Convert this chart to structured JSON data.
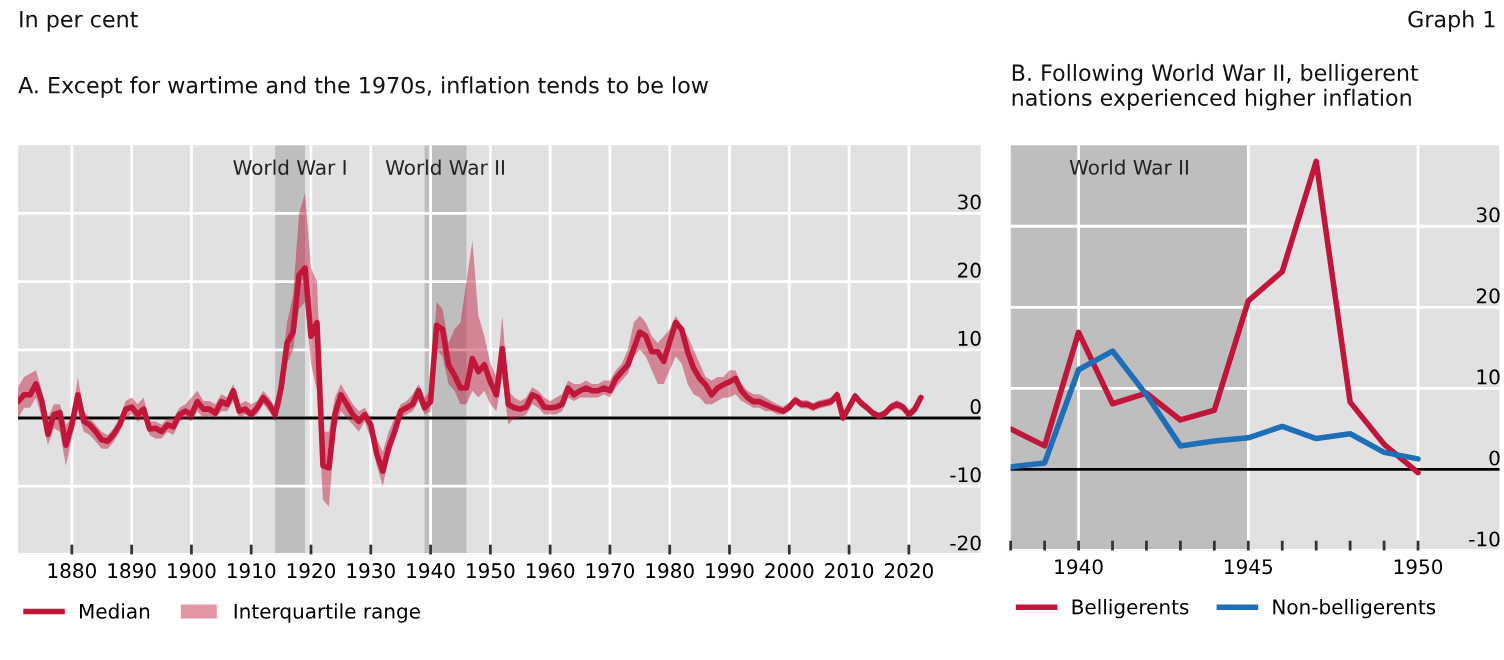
{
  "chart_data": [
    {
      "type": "line",
      "title": "A. Except for wartime and the 1970s, inflation tends to be low",
      "annotations": [
        "In per cent",
        "Graph 1",
        "Interquartile range"
      ],
      "x": [
        1871,
        1872,
        1873,
        1874,
        1875,
        1876,
        1877,
        1878,
        1879,
        1880,
        1881,
        1882,
        1883,
        1884,
        1885,
        1886,
        1887,
        1888,
        1889,
        1890,
        1891,
        1892,
        1893,
        1894,
        1895,
        1896,
        1897,
        1898,
        1899,
        1900,
        1901,
        1902,
        1903,
        1904,
        1905,
        1906,
        1907,
        1908,
        1909,
        1910,
        1911,
        1912,
        1913,
        1914,
        1915,
        1916,
        1917,
        1918,
        1919,
        1920,
        1921,
        1922,
        1923,
        1924,
        1925,
        1926,
        1927,
        1928,
        1929,
        1930,
        1931,
        1932,
        1933,
        1934,
        1935,
        1936,
        1937,
        1938,
        1939,
        1940,
        1941,
        1942,
        1943,
        1944,
        1945,
        1946,
        1947,
        1948,
        1949,
        1950,
        1951,
        1952,
        1953,
        1954,
        1955,
        1956,
        1957,
        1958,
        1959,
        1960,
        1961,
        1962,
        1963,
        1964,
        1965,
        1966,
        1967,
        1968,
        1969,
        1970,
        1971,
        1972,
        1973,
        1974,
        1975,
        1976,
        1977,
        1978,
        1979,
        1980,
        1981,
        1982,
        1983,
        1984,
        1985,
        1986,
        1987,
        1988,
        1989,
        1990,
        1991,
        1992,
        1993,
        1994,
        1995,
        1996,
        1997,
        1998,
        1999,
        2000,
        2001,
        2002,
        2003,
        2004,
        2005,
        2006,
        2007,
        2008,
        2009,
        2010,
        2011,
        2012,
        2013,
        2014,
        2015,
        2016,
        2017,
        2018,
        2019,
        2020,
        2021,
        2022
      ],
      "series": [
        {
          "name": "Median",
          "color": "#c0163a",
          "upper": [
            4.5,
            6,
            6.5,
            7,
            4,
            0,
            2,
            2,
            -1,
            0,
            6,
            1,
            0,
            -1,
            -2,
            -2.5,
            -1.5,
            0,
            2.5,
            3,
            2,
            3,
            -0.5,
            -0.5,
            -1,
            0,
            0,
            1.5,
            2,
            3,
            4,
            2.5,
            2.5,
            2,
            3.5,
            3,
            5,
            2,
            2.5,
            2,
            2.5,
            4,
            3,
            1.5,
            7,
            14,
            18,
            30,
            33,
            22,
            20,
            -2,
            -2,
            3,
            5,
            3.5,
            2,
            1,
            1.5,
            0,
            -3,
            -5,
            -2,
            0,
            2,
            2.5,
            3.5,
            5,
            3,
            4,
            17,
            16,
            11,
            13,
            14,
            20,
            26,
            15,
            12,
            8,
            6,
            15,
            4,
            3,
            2.5,
            3,
            4.5,
            4,
            3,
            2.5,
            3,
            3.5,
            5.5,
            5,
            5,
            5.5,
            5,
            5,
            5.5,
            5.5,
            7,
            8,
            10,
            14,
            15,
            14,
            12,
            11,
            12,
            13,
            15,
            13.5,
            12,
            10,
            8,
            6,
            5.5,
            6,
            6,
            7,
            7,
            5,
            4,
            3.5,
            3.5,
            3,
            2.5,
            2,
            1.7,
            2.3,
            3.2,
            2.6,
            2.6,
            2.2,
            2.6,
            2.8,
            3,
            4,
            0.6,
            2.2,
            3.8,
            2.8,
            2,
            1.2,
            0.8,
            1.2,
            2.2,
            2.6,
            2.2,
            1,
            2,
            3.6
          ],
          "lower": [
            0,
            1.5,
            1.5,
            3,
            0,
            -4,
            -1.5,
            -2,
            -7,
            -3,
            1,
            -2,
            -2.5,
            -3.5,
            -4.5,
            -4.5,
            -3.5,
            -2,
            0,
            0.5,
            -0.5,
            0,
            -2.5,
            -3,
            -3,
            -2,
            -2.5,
            -0.5,
            0,
            -0.5,
            1,
            0,
            0.3,
            0,
            1,
            1,
            2.5,
            0,
            0.5,
            0,
            0.5,
            2,
            1,
            -0.5,
            2,
            8,
            10,
            16,
            17,
            8,
            4,
            -12,
            -13,
            -2,
            1,
            0,
            -1,
            -2,
            -0.5,
            -3,
            -7,
            -10,
            -6,
            -3,
            0,
            0.5,
            1,
            2.5,
            0.5,
            1,
            10,
            9,
            5,
            4,
            2,
            2,
            4,
            3,
            4,
            2,
            1,
            6,
            -1,
            0,
            0,
            0.5,
            2,
            1.5,
            0.5,
            0.5,
            0.5,
            1,
            3,
            2.5,
            3,
            3,
            3,
            3,
            3.5,
            3,
            4.5,
            5.5,
            6.5,
            9,
            10,
            9,
            7,
            5,
            5,
            7,
            9,
            8,
            5,
            3.5,
            3,
            2,
            2,
            2.5,
            3,
            3,
            3.5,
            2.5,
            2,
            1.5,
            1.5,
            1,
            1,
            0.5,
            0.5,
            1,
            2,
            1.4,
            1.4,
            1,
            1.4,
            1.6,
            1.8,
            2.8,
            -0.6,
            1,
            2.6,
            1.6,
            1,
            0.2,
            -0.2,
            0.2,
            1,
            1.4,
            1,
            0,
            0.6,
            2.4
          ],
          "values": [
            2.4,
            3.4,
            3.4,
            5,
            2.4,
            -2.4,
            0.5,
            0.8,
            -4,
            -1,
            3.4,
            -0.5,
            -1,
            -2,
            -3.2,
            -3.4,
            -2.4,
            -1,
            1.3,
            1.6,
            0.5,
            1.3,
            -1.6,
            -1.5,
            -2,
            -1,
            -1.3,
            0.5,
            1,
            0.5,
            2.4,
            1.3,
            1.3,
            0.7,
            2.4,
            2,
            4,
            1,
            1.3,
            0.5,
            1.5,
            3,
            2,
            0.5,
            4.4,
            11,
            12.6,
            21,
            22,
            12,
            14,
            -7,
            -7.3,
            0.5,
            3.4,
            2,
            0.5,
            -0.5,
            0.5,
            -1,
            -5.3,
            -7.8,
            -4.4,
            -2,
            1,
            1.5,
            2,
            4,
            1.5,
            2.4,
            13.6,
            13,
            7.8,
            6.3,
            4.4,
            4.4,
            8.7,
            6.8,
            7.8,
            5.3,
            3.4,
            10.2,
            2,
            1.5,
            1.3,
            1.6,
            3.4,
            3,
            1.6,
            1.5,
            1.6,
            2,
            4.4,
            3.4,
            4,
            4.4,
            4,
            4,
            4.4,
            4,
            5.8,
            6.8,
            7.8,
            10.2,
            12.6,
            12,
            9.7,
            9.7,
            8.3,
            11.2,
            14,
            13,
            9.7,
            7.3,
            5.8,
            4.9,
            3.4,
            4.4,
            4.9,
            5.3,
            5.8,
            4,
            3,
            2.4,
            2.4,
            2,
            1.6,
            1.3,
            1,
            1.6,
            2.6,
            2,
            2,
            1.6,
            2,
            2.2,
            2.4,
            3.4,
            0,
            1.6,
            3.2,
            2.2,
            1.5,
            0.7,
            0.3,
            0.7,
            1.6,
            2,
            1.6,
            0.5,
            1.3,
            3
          ]
        }
      ],
      "xlim": [
        1871,
        2032
      ],
      "xticks": [
        1880,
        1890,
        1900,
        1910,
        1920,
        1930,
        1940,
        1950,
        1960,
        1970,
        1980,
        1990,
        2000,
        2010,
        2020
      ],
      "ylim": [
        -20,
        40
      ],
      "yticks": [
        -20,
        -10,
        0,
        10,
        20,
        30
      ],
      "grid": true,
      "legend": "bottom",
      "ref_lines": [
        {
          "axis": "y",
          "value": 0,
          "color": "#000000"
        }
      ],
      "bands": [
        {
          "axis": "x",
          "from": 1914,
          "to": 1919,
          "label": "World War I",
          "color": "#bebebe"
        },
        {
          "axis": "x",
          "from": 1939,
          "to": 1946,
          "label": "World War II",
          "color": "#bebebe"
        }
      ]
    },
    {
      "type": "line",
      "title": "B. Following World War II, belligerent nations experienced higher inflation",
      "x": [
        1938,
        1939,
        1940,
        1941,
        1942,
        1943,
        1944,
        1945,
        1946,
        1947,
        1948,
        1949,
        1950
      ],
      "series": [
        {
          "name": "Belligerents",
          "color": "#c0163a",
          "values": [
            5,
            2.9,
            16.9,
            8.1,
            9.4,
            6.1,
            7.3,
            20.8,
            24.4,
            38,
            8.3,
            3.1,
            -0.4
          ]
        },
        {
          "name": "Non-belligerents",
          "color": "#1f6fb8",
          "values": [
            0.3,
            0.8,
            12.3,
            14.6,
            9.2,
            2.9,
            3.5,
            3.9,
            5.3,
            3.8,
            4.4,
            2.1,
            1.3
          ]
        }
      ],
      "xlim": [
        1938,
        1952.4
      ],
      "xticks": [
        {
          "value": 1938,
          "label": null
        },
        {
          "value": 1939,
          "label": null
        },
        1940,
        {
          "value": 1941,
          "label": null
        },
        {
          "value": 1942,
          "label": null
        },
        {
          "value": 1943,
          "label": null
        },
        {
          "value": 1944,
          "label": null
        },
        1945,
        {
          "value": 1946,
          "label": null
        },
        {
          "value": 1947,
          "label": null
        },
        {
          "value": 1948,
          "label": null
        },
        {
          "value": 1949,
          "label": null
        },
        1950
      ],
      "ylim": [
        -10,
        40
      ],
      "yticks": [
        -10,
        0,
        10,
        20,
        30
      ],
      "grid": true,
      "legend": "bottom",
      "ref_lines": [
        {
          "axis": "y",
          "value": 0,
          "color": "#000000"
        }
      ],
      "bands": [
        {
          "axis": "x",
          "from": 1938,
          "to": 1945,
          "label": "World War II",
          "color": "#bebebe"
        }
      ]
    }
  ]
}
